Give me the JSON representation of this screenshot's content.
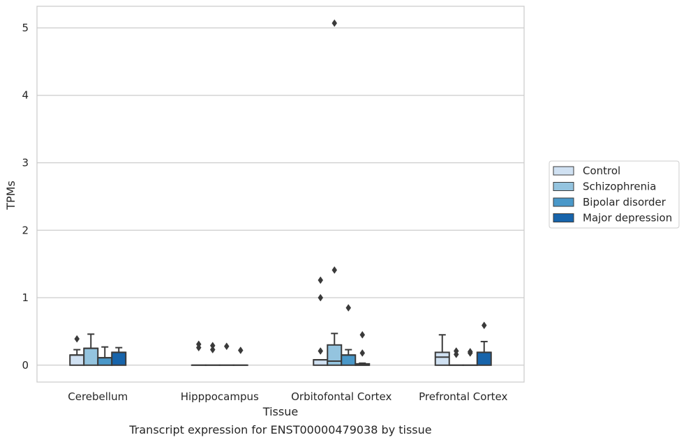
{
  "chart_data": {
    "type": "box",
    "xlabel": "Tissue",
    "ylabel": "TPMs",
    "caption": "Transcript expression for ENST00000479038 by tissue",
    "categories": [
      "Cerebellum",
      "Hipppocampus",
      "Orbitofontal Cortex",
      "Prefrontal Cortex"
    ],
    "ylim": [
      -0.25,
      5.32
    ],
    "yticks": [
      0,
      1,
      2,
      3,
      4,
      5
    ],
    "grid": true,
    "legend_position": "right",
    "series": [
      {
        "name": "Control",
        "color": "#d0e1f2"
      },
      {
        "name": "Schizophrenia",
        "color": "#94c4df"
      },
      {
        "name": "Bipolar disorder",
        "color": "#4a98c9"
      },
      {
        "name": "Major depression",
        "color": "#1764ab"
      }
    ],
    "boxes": [
      [
        {
          "q1": 0,
          "median": 0.15,
          "q3": 0.15,
          "whislo": 0,
          "whishi": 0.23,
          "fliers": [
            0.39
          ]
        },
        {
          "q1": 0,
          "median": 0.25,
          "q3": 0.25,
          "whislo": 0,
          "whishi": 0.46,
          "fliers": []
        },
        {
          "q1": 0,
          "median": 0.11,
          "q3": 0.11,
          "whislo": 0,
          "whishi": 0.27,
          "fliers": []
        },
        {
          "q1": 0,
          "median": 0.19,
          "q3": 0.19,
          "whislo": 0,
          "whishi": 0.26,
          "fliers": []
        }
      ],
      [
        {
          "q1": 0,
          "median": 0,
          "q3": 0,
          "whislo": 0,
          "whishi": 0,
          "fliers": [
            0.26,
            0.31
          ]
        },
        {
          "q1": 0,
          "median": 0,
          "q3": 0,
          "whislo": 0,
          "whishi": 0,
          "fliers": [
            0.23,
            0.29
          ]
        },
        {
          "q1": 0,
          "median": 0,
          "q3": 0,
          "whislo": 0,
          "whishi": 0,
          "fliers": [
            0.28
          ]
        },
        {
          "q1": 0,
          "median": 0,
          "q3": 0,
          "whislo": 0,
          "whishi": 0,
          "fliers": [
            0.22
          ]
        }
      ],
      [
        {
          "q1": 0,
          "median": 0.08,
          "q3": 0.08,
          "whislo": 0,
          "whishi": 0.08,
          "fliers": [
            0.21,
            1.0,
            1.26
          ]
        },
        {
          "q1": 0,
          "median": 0.06,
          "q3": 0.3,
          "whislo": 0,
          "whishi": 0.47,
          "fliers": [
            1.41,
            5.07
          ]
        },
        {
          "q1": 0,
          "median": 0.15,
          "q3": 0.15,
          "whislo": 0,
          "whishi": 0.23,
          "fliers": [
            0.85
          ]
        },
        {
          "q1": 0,
          "median": 0,
          "q3": 0.02,
          "whislo": 0,
          "whishi": 0.03,
          "fliers": [
            0.18,
            0.45
          ]
        }
      ],
      [
        {
          "q1": 0,
          "median": 0.12,
          "q3": 0.19,
          "whislo": 0,
          "whishi": 0.45,
          "fliers": []
        },
        {
          "q1": 0,
          "median": 0,
          "q3": 0,
          "whislo": 0,
          "whishi": 0,
          "fliers": [
            0.16,
            0.21
          ]
        },
        {
          "q1": 0,
          "median": 0,
          "q3": 0,
          "whislo": 0,
          "whishi": 0,
          "fliers": [
            0.18,
            0.2
          ]
        },
        {
          "q1": 0,
          "median": 0.19,
          "q3": 0.19,
          "whislo": 0,
          "whishi": 0.35,
          "fliers": [
            0.59
          ]
        }
      ]
    ]
  }
}
